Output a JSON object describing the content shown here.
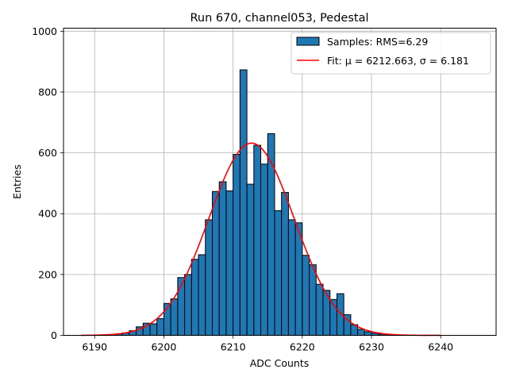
{
  "chart_data": {
    "type": "bar",
    "title": "Run 670, channel053, Pedestal",
    "xlabel": "ADC Counts",
    "ylabel": "Entries",
    "xlim": [
      6185.5,
      6248
    ],
    "ylim": [
      0,
      1010
    ],
    "xticks": [
      6190,
      6200,
      6210,
      6220,
      6230,
      6240
    ],
    "yticks": [
      0,
      200,
      400,
      600,
      800,
      1000
    ],
    "grid": true,
    "legend_position": "top-right",
    "bin_width": 1,
    "series": [
      {
        "name": "Samples: RMS=6.29",
        "kind": "histogram",
        "color": "#1f77b4",
        "edgecolor": "#000000",
        "bins": [
          6193,
          6194,
          6195,
          6196,
          6197,
          6198,
          6199,
          6200,
          6201,
          6202,
          6203,
          6204,
          6205,
          6206,
          6207,
          6208,
          6209,
          6210,
          6211,
          6212,
          6213,
          6214,
          6215,
          6216,
          6217,
          6218,
          6219,
          6220,
          6221,
          6222,
          6223,
          6224,
          6225,
          6226,
          6227,
          6228,
          6229,
          6230,
          6231,
          6232
        ],
        "values": [
          5,
          8,
          15,
          28,
          40,
          38,
          55,
          105,
          120,
          190,
          200,
          250,
          265,
          380,
          473,
          505,
          475,
          595,
          873,
          497,
          625,
          563,
          663,
          410,
          470,
          380,
          370,
          263,
          232,
          168,
          148,
          118,
          137,
          68,
          35,
          20,
          12,
          7,
          4,
          2
        ]
      },
      {
        "name": "Fit: μ = 6212.663, σ = 6.181",
        "kind": "gaussian",
        "color": "#ff0000",
        "mu": 6212.663,
        "sigma": 6.181,
        "amplitude": 632,
        "xrange": [
          6188,
          6240
        ]
      }
    ]
  }
}
